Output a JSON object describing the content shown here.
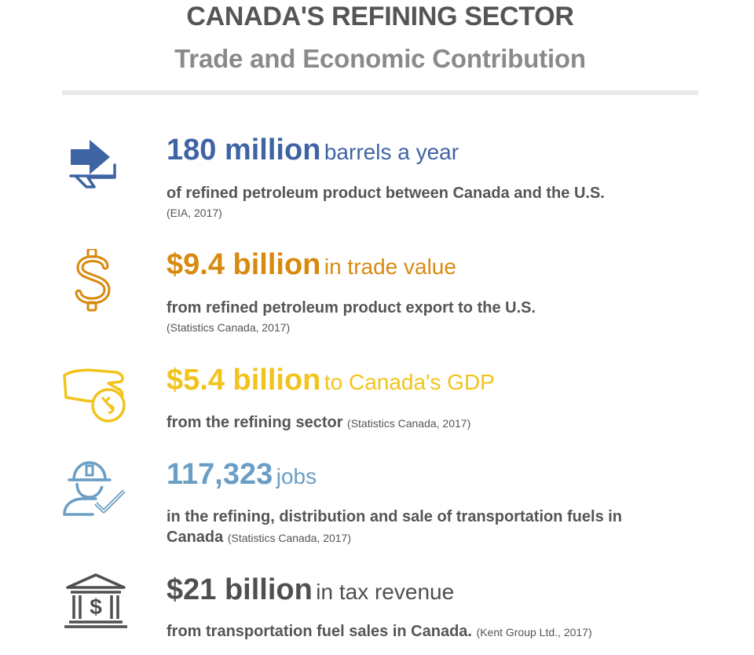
{
  "header": {
    "title": "CANADA'S REFINING SECTOR",
    "subtitle": "Trade and Economic Contribution"
  },
  "colors": {
    "blue": "#3e64a4",
    "orange": "#d88a0f",
    "yellow": "#f2c31c",
    "lightblue": "#6a9ec4",
    "gray": "#4f4f4f",
    "text": "#555555"
  },
  "stats": [
    {
      "icon": "exchange-arrows-icon",
      "value": "180 million",
      "unit": "barrels a year",
      "description": "of refined petroleum product between Canada and the U.S.",
      "source": "(EIA, 2017)"
    },
    {
      "icon": "dollar-sign-icon",
      "value": "$9.4 billion",
      "unit": "in trade value",
      "description": "from refined petroleum product export to the U.S.",
      "source": "(Statistics Canada, 2017)"
    },
    {
      "icon": "hand-coin-icon",
      "value": "$5.4 billion",
      "unit": "to Canada's GDP",
      "description": "from the refining sector",
      "source": "(Statistics Canada, 2017)"
    },
    {
      "icon": "worker-check-icon",
      "value": "117,323",
      "unit": "jobs",
      "description_line1": "in the refining, distribution and sale of transportation fuels in",
      "description_line2": "Canada",
      "source": "(Statistics Canada, 2017)"
    },
    {
      "icon": "bank-building-icon",
      "value": "$21 billion",
      "unit": "in tax revenue",
      "description": "from transportation fuel sales in Canada.",
      "source": "(Kent Group Ltd., 2017)"
    }
  ]
}
